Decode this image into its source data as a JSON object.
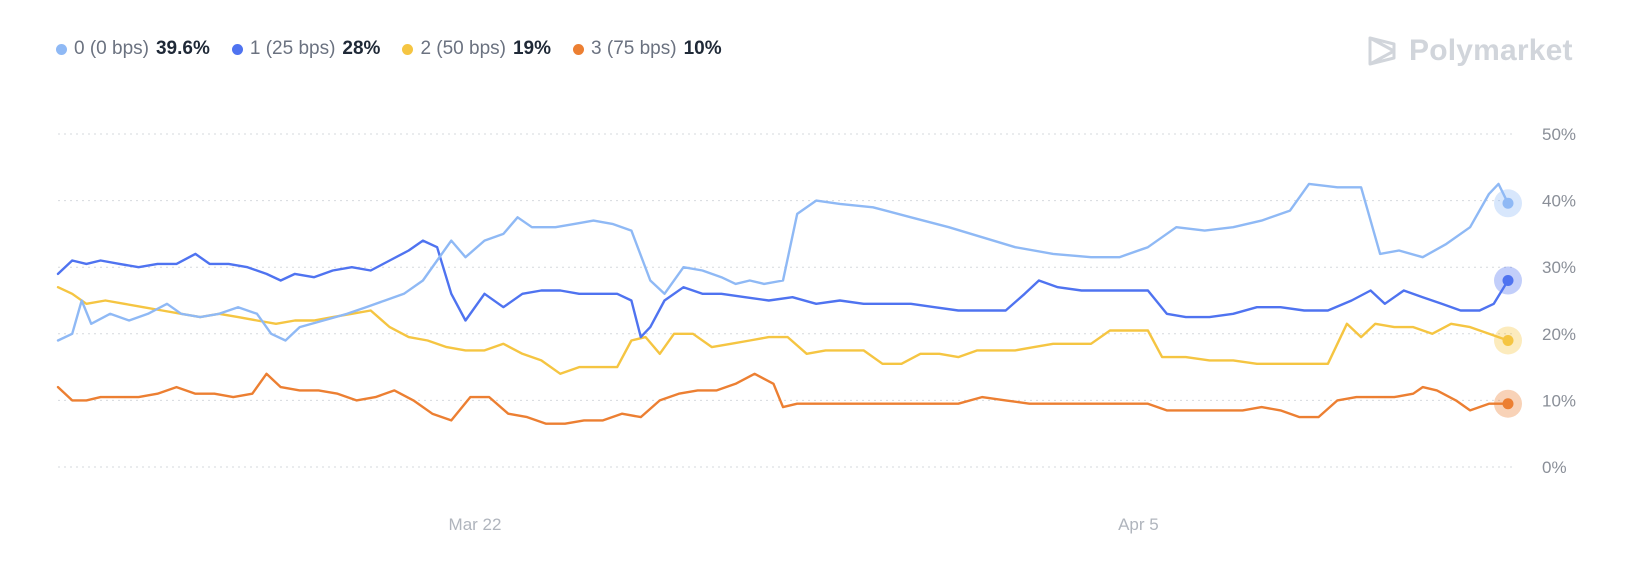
{
  "brand": {
    "name": "Polymarket"
  },
  "legend": [
    {
      "name": "0 (0 bps)",
      "value": "39.6%",
      "color": "#8fb9f5"
    },
    {
      "name": "1 (25 bps)",
      "value": "28%",
      "color": "#4f73f0"
    },
    {
      "name": "2 (50 bps)",
      "value": "19%",
      "color": "#f5c542"
    },
    {
      "name": "3 (75 bps)",
      "value": "10%",
      "color": "#ec7f32"
    }
  ],
  "chart_data": {
    "type": "line",
    "ylim": [
      0,
      50
    ],
    "yticks": [
      "50%",
      "40%",
      "30%",
      "20%",
      "10%",
      "0%"
    ],
    "ytick_values": [
      50,
      40,
      30,
      20,
      10,
      0
    ],
    "grid": true,
    "x_tick_labels": [
      "Mar 22",
      "Apr 5"
    ],
    "x_tick_day_values": [
      8.8,
      22.8
    ],
    "x_range_days": [
      0,
      30.6
    ],
    "series": [
      {
        "name": "0 (0 bps)",
        "color": "#8fb9f5",
        "points": [
          [
            0,
            19
          ],
          [
            0.3,
            20
          ],
          [
            0.5,
            25
          ],
          [
            0.7,
            21.5
          ],
          [
            1.1,
            23
          ],
          [
            1.5,
            22
          ],
          [
            1.9,
            23
          ],
          [
            2.3,
            24.5
          ],
          [
            2.6,
            23
          ],
          [
            3,
            22.5
          ],
          [
            3.4,
            23
          ],
          [
            3.8,
            24
          ],
          [
            4.2,
            23
          ],
          [
            4.5,
            20
          ],
          [
            4.8,
            19
          ],
          [
            5.1,
            21
          ],
          [
            5.6,
            22
          ],
          [
            6.1,
            23
          ],
          [
            6.5,
            24
          ],
          [
            6.9,
            25
          ],
          [
            7.3,
            26
          ],
          [
            7.7,
            28
          ],
          [
            8.0,
            31
          ],
          [
            8.3,
            34
          ],
          [
            8.6,
            31.5
          ],
          [
            9.0,
            34
          ],
          [
            9.4,
            35
          ],
          [
            9.7,
            37.5
          ],
          [
            10.0,
            36
          ],
          [
            10.5,
            36
          ],
          [
            10.9,
            36.5
          ],
          [
            11.3,
            37
          ],
          [
            11.7,
            36.5
          ],
          [
            12.1,
            35.5
          ],
          [
            12.5,
            28
          ],
          [
            12.8,
            26
          ],
          [
            13.2,
            30
          ],
          [
            13.6,
            29.5
          ],
          [
            14.0,
            28.5
          ],
          [
            14.3,
            27.5
          ],
          [
            14.6,
            28
          ],
          [
            14.9,
            27.5
          ],
          [
            15.3,
            28
          ],
          [
            15.6,
            38
          ],
          [
            16.0,
            40
          ],
          [
            16.5,
            39.5
          ],
          [
            17.2,
            39
          ],
          [
            18.0,
            37.5
          ],
          [
            18.8,
            36
          ],
          [
            19.5,
            34.5
          ],
          [
            20.2,
            33
          ],
          [
            21.0,
            32
          ],
          [
            21.8,
            31.5
          ],
          [
            22.4,
            31.5
          ],
          [
            23.0,
            33
          ],
          [
            23.6,
            36
          ],
          [
            24.2,
            35.5
          ],
          [
            24.8,
            36
          ],
          [
            25.4,
            37
          ],
          [
            26.0,
            38.5
          ],
          [
            26.4,
            42.5
          ],
          [
            27.0,
            42
          ],
          [
            27.5,
            42
          ],
          [
            27.9,
            32
          ],
          [
            28.3,
            32.5
          ],
          [
            28.8,
            31.5
          ],
          [
            29.3,
            33.5
          ],
          [
            29.8,
            36
          ],
          [
            30.2,
            41
          ],
          [
            30.4,
            42.5
          ],
          [
            30.6,
            39.6
          ]
        ]
      },
      {
        "name": "1 (25 bps)",
        "color": "#4f73f0",
        "points": [
          [
            0,
            29
          ],
          [
            0.3,
            31
          ],
          [
            0.6,
            30.5
          ],
          [
            0.9,
            31
          ],
          [
            1.3,
            30.5
          ],
          [
            1.7,
            30
          ],
          [
            2.1,
            30.5
          ],
          [
            2.5,
            30.5
          ],
          [
            2.9,
            32
          ],
          [
            3.2,
            30.5
          ],
          [
            3.6,
            30.5
          ],
          [
            4.0,
            30
          ],
          [
            4.4,
            29
          ],
          [
            4.7,
            28
          ],
          [
            5.0,
            29
          ],
          [
            5.4,
            28.5
          ],
          [
            5.8,
            29.5
          ],
          [
            6.2,
            30
          ],
          [
            6.6,
            29.5
          ],
          [
            7.0,
            31
          ],
          [
            7.4,
            32.5
          ],
          [
            7.7,
            34
          ],
          [
            8.0,
            33
          ],
          [
            8.3,
            26
          ],
          [
            8.6,
            22
          ],
          [
            9.0,
            26
          ],
          [
            9.4,
            24
          ],
          [
            9.8,
            26
          ],
          [
            10.2,
            26.5
          ],
          [
            10.6,
            26.5
          ],
          [
            11.0,
            26
          ],
          [
            11.4,
            26
          ],
          [
            11.8,
            26
          ],
          [
            12.1,
            25
          ],
          [
            12.3,
            19.5
          ],
          [
            12.5,
            21
          ],
          [
            12.8,
            25
          ],
          [
            13.2,
            27
          ],
          [
            13.6,
            26
          ],
          [
            14.0,
            26
          ],
          [
            14.5,
            25.5
          ],
          [
            15.0,
            25
          ],
          [
            15.5,
            25.5
          ],
          [
            16.0,
            24.5
          ],
          [
            16.5,
            25
          ],
          [
            17.0,
            24.5
          ],
          [
            17.5,
            24.5
          ],
          [
            18.0,
            24.5
          ],
          [
            18.5,
            24
          ],
          [
            19.0,
            23.5
          ],
          [
            19.5,
            23.5
          ],
          [
            20.0,
            23.5
          ],
          [
            20.4,
            26
          ],
          [
            20.7,
            28
          ],
          [
            21.1,
            27
          ],
          [
            21.6,
            26.5
          ],
          [
            22.0,
            26.5
          ],
          [
            22.5,
            26.5
          ],
          [
            23.0,
            26.5
          ],
          [
            23.4,
            23
          ],
          [
            23.8,
            22.5
          ],
          [
            24.3,
            22.5
          ],
          [
            24.8,
            23
          ],
          [
            25.3,
            24
          ],
          [
            25.8,
            24
          ],
          [
            26.3,
            23.5
          ],
          [
            26.8,
            23.5
          ],
          [
            27.3,
            25
          ],
          [
            27.7,
            26.5
          ],
          [
            28.0,
            24.5
          ],
          [
            28.4,
            26.5
          ],
          [
            28.8,
            25.5
          ],
          [
            29.2,
            24.5
          ],
          [
            29.6,
            23.5
          ],
          [
            30.0,
            23.5
          ],
          [
            30.3,
            24.5
          ],
          [
            30.6,
            28
          ]
        ]
      },
      {
        "name": "2 (50 bps)",
        "color": "#f5c542",
        "points": [
          [
            0,
            27
          ],
          [
            0.3,
            26
          ],
          [
            0.6,
            24.5
          ],
          [
            1.0,
            25
          ],
          [
            1.4,
            24.5
          ],
          [
            1.8,
            24
          ],
          [
            2.2,
            23.5
          ],
          [
            2.6,
            23
          ],
          [
            3.0,
            22.5
          ],
          [
            3.4,
            23
          ],
          [
            3.8,
            22.5
          ],
          [
            4.2,
            22
          ],
          [
            4.6,
            21.5
          ],
          [
            5.0,
            22
          ],
          [
            5.4,
            22
          ],
          [
            5.8,
            22.5
          ],
          [
            6.2,
            23
          ],
          [
            6.6,
            23.5
          ],
          [
            7.0,
            21
          ],
          [
            7.4,
            19.5
          ],
          [
            7.8,
            19
          ],
          [
            8.2,
            18
          ],
          [
            8.6,
            17.5
          ],
          [
            9.0,
            17.5
          ],
          [
            9.4,
            18.5
          ],
          [
            9.8,
            17
          ],
          [
            10.2,
            16
          ],
          [
            10.6,
            14
          ],
          [
            11.0,
            15
          ],
          [
            11.4,
            15
          ],
          [
            11.8,
            15
          ],
          [
            12.1,
            19
          ],
          [
            12.4,
            19.5
          ],
          [
            12.7,
            17
          ],
          [
            13.0,
            20
          ],
          [
            13.4,
            20
          ],
          [
            13.8,
            18
          ],
          [
            14.2,
            18.5
          ],
          [
            14.6,
            19
          ],
          [
            15.0,
            19.5
          ],
          [
            15.4,
            19.5
          ],
          [
            15.8,
            17
          ],
          [
            16.2,
            17.5
          ],
          [
            16.6,
            17.5
          ],
          [
            17.0,
            17.5
          ],
          [
            17.4,
            15.5
          ],
          [
            17.8,
            15.5
          ],
          [
            18.2,
            17
          ],
          [
            18.6,
            17
          ],
          [
            19.0,
            16.5
          ],
          [
            19.4,
            17.5
          ],
          [
            19.8,
            17.5
          ],
          [
            20.2,
            17.5
          ],
          [
            20.6,
            18
          ],
          [
            21.0,
            18.5
          ],
          [
            21.4,
            18.5
          ],
          [
            21.8,
            18.5
          ],
          [
            22.2,
            20.5
          ],
          [
            22.6,
            20.5
          ],
          [
            23.0,
            20.5
          ],
          [
            23.3,
            16.5
          ],
          [
            23.8,
            16.5
          ],
          [
            24.3,
            16
          ],
          [
            24.8,
            16
          ],
          [
            25.3,
            15.5
          ],
          [
            25.8,
            15.5
          ],
          [
            26.3,
            15.5
          ],
          [
            26.8,
            15.5
          ],
          [
            27.2,
            21.5
          ],
          [
            27.5,
            19.5
          ],
          [
            27.8,
            21.5
          ],
          [
            28.2,
            21
          ],
          [
            28.6,
            21
          ],
          [
            29.0,
            20
          ],
          [
            29.4,
            21.5
          ],
          [
            29.8,
            21
          ],
          [
            30.2,
            20
          ],
          [
            30.6,
            19
          ]
        ]
      },
      {
        "name": "3 (75 bps)",
        "color": "#ec7f32",
        "points": [
          [
            0,
            12
          ],
          [
            0.3,
            10
          ],
          [
            0.6,
            10
          ],
          [
            0.9,
            10.5
          ],
          [
            1.3,
            10.5
          ],
          [
            1.7,
            10.5
          ],
          [
            2.1,
            11
          ],
          [
            2.5,
            12
          ],
          [
            2.9,
            11
          ],
          [
            3.3,
            11
          ],
          [
            3.7,
            10.5
          ],
          [
            4.1,
            11
          ],
          [
            4.4,
            14
          ],
          [
            4.7,
            12
          ],
          [
            5.1,
            11.5
          ],
          [
            5.5,
            11.5
          ],
          [
            5.9,
            11
          ],
          [
            6.3,
            10
          ],
          [
            6.7,
            10.5
          ],
          [
            7.1,
            11.5
          ],
          [
            7.5,
            10
          ],
          [
            7.9,
            8
          ],
          [
            8.3,
            7
          ],
          [
            8.7,
            10.5
          ],
          [
            9.1,
            10.5
          ],
          [
            9.5,
            8
          ],
          [
            9.9,
            7.5
          ],
          [
            10.3,
            6.5
          ],
          [
            10.7,
            6.5
          ],
          [
            11.1,
            7
          ],
          [
            11.5,
            7
          ],
          [
            11.9,
            8
          ],
          [
            12.3,
            7.5
          ],
          [
            12.7,
            10
          ],
          [
            13.1,
            11
          ],
          [
            13.5,
            11.5
          ],
          [
            13.9,
            11.5
          ],
          [
            14.3,
            12.5
          ],
          [
            14.7,
            14
          ],
          [
            15.1,
            12.5
          ],
          [
            15.3,
            9
          ],
          [
            15.6,
            9.5
          ],
          [
            16.0,
            9.5
          ],
          [
            16.5,
            9.5
          ],
          [
            17.0,
            9.5
          ],
          [
            17.5,
            9.5
          ],
          [
            18.0,
            9.5
          ],
          [
            18.5,
            9.5
          ],
          [
            19.0,
            9.5
          ],
          [
            19.5,
            10.5
          ],
          [
            20.0,
            10
          ],
          [
            20.5,
            9.5
          ],
          [
            21.0,
            9.5
          ],
          [
            21.5,
            9.5
          ],
          [
            22.0,
            9.5
          ],
          [
            22.5,
            9.5
          ],
          [
            23.0,
            9.5
          ],
          [
            23.4,
            8.5
          ],
          [
            23.8,
            8.5
          ],
          [
            24.2,
            8.5
          ],
          [
            24.6,
            8.5
          ],
          [
            25.0,
            8.5
          ],
          [
            25.4,
            9
          ],
          [
            25.8,
            8.5
          ],
          [
            26.2,
            7.5
          ],
          [
            26.6,
            7.5
          ],
          [
            27.0,
            10
          ],
          [
            27.4,
            10.5
          ],
          [
            27.8,
            10.5
          ],
          [
            28.2,
            10.5
          ],
          [
            28.6,
            11
          ],
          [
            28.8,
            12
          ],
          [
            29.1,
            11.5
          ],
          [
            29.5,
            10
          ],
          [
            29.8,
            8.5
          ],
          [
            30.2,
            9.5
          ],
          [
            30.6,
            9.5
          ]
        ]
      }
    ]
  }
}
